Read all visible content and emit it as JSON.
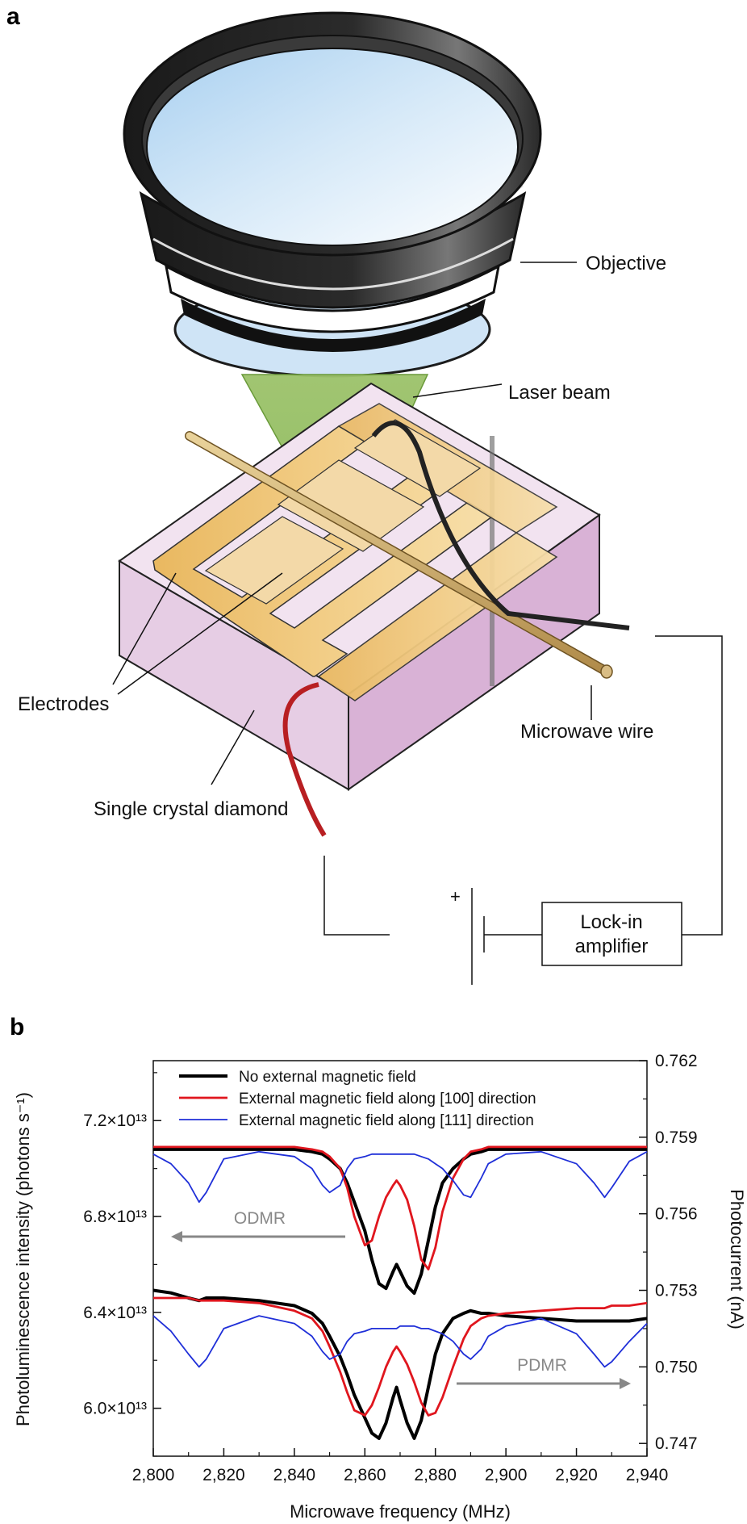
{
  "panel_a": {
    "letter": "a",
    "labels": {
      "objective": "Objective",
      "laser_beam": "Laser beam",
      "electrodes": "Electrodes",
      "microwave_wire": "Microwave wire",
      "diamond": "Single crystal diamond",
      "plus": "+",
      "lockin_line1": "Lock-in",
      "lockin_line2": "amplifier"
    }
  },
  "panel_b": {
    "letter": "b",
    "annotations": {
      "odmr": "ODMR",
      "pdmr": "PDMR"
    }
  },
  "chart_data": {
    "type": "line",
    "xlabel": "Microwave frequency (MHz)",
    "ylabel_left": "Photoluminescence intensity (photons s⁻¹)",
    "ylabel_right": "Photocurrent (nA)",
    "xlim": [
      2800,
      2940
    ],
    "x_ticks": [
      2800,
      2820,
      2840,
      2860,
      2880,
      2900,
      2920,
      2940
    ],
    "x_tick_labels": [
      "2,800",
      "2,820",
      "2,840",
      "2,860",
      "2,880",
      "2,900",
      "2,920",
      "2,940"
    ],
    "ylim_left": [
      58000000000000.0,
      74500000000000.0
    ],
    "y_ticks_left": [
      60000000000000.0,
      64000000000000.0,
      68000000000000.0,
      72000000000000.0
    ],
    "y_tick_labels_left": [
      "6.0×10¹³",
      "6.4×10¹³",
      "6.8×10¹³",
      "7.2×10¹³"
    ],
    "ylim_right": [
      0.7465,
      0.762
    ],
    "y_ticks_right": [
      0.747,
      0.75,
      0.753,
      0.756,
      0.759,
      0.762
    ],
    "y_tick_labels_right": [
      "0.747",
      "0.750",
      "0.753",
      "0.756",
      "0.759",
      "0.762"
    ],
    "legend_position": "top",
    "x": [
      2800,
      2805,
      2810,
      2813,
      2815,
      2820,
      2830,
      2840,
      2845,
      2848,
      2850,
      2853,
      2855,
      2857,
      2860,
      2862,
      2864,
      2866,
      2868,
      2869,
      2870,
      2872,
      2874,
      2876,
      2878,
      2880,
      2882,
      2885,
      2888,
      2890,
      2893,
      2895,
      2900,
      2910,
      2920,
      2925,
      2928,
      2930,
      2935,
      2940
    ],
    "series": [
      {
        "name": "No external magnetic field",
        "color": "#000000",
        "axis": "left",
        "group": "ODMR",
        "values": [
          70800000000000.0,
          70800000000000.0,
          70800000000000.0,
          70800000000000.0,
          70800000000000.0,
          70800000000000.0,
          70800000000000.0,
          70800000000000.0,
          70700000000000.0,
          70600000000000.0,
          70400000000000.0,
          70000000000000.0,
          69400000000000.0,
          68600000000000.0,
          67400000000000.0,
          66200000000000.0,
          65200000000000.0,
          65000000000000.0,
          65700000000000.0,
          66000000000000.0,
          65700000000000.0,
          65100000000000.0,
          64800000000000.0,
          65600000000000.0,
          67000000000000.0,
          68400000000000.0,
          69400000000000.0,
          70000000000000.0,
          70400000000000.0,
          70600000000000.0,
          70700000000000.0,
          70800000000000.0,
          70800000000000.0,
          70800000000000.0,
          70800000000000.0,
          70800000000000.0,
          70800000000000.0,
          70800000000000.0,
          70800000000000.0,
          70800000000000.0
        ]
      },
      {
        "name": "External magnetic field along [100] direction",
        "color": "#e0161e",
        "axis": "left",
        "group": "ODMR",
        "values": [
          70900000000000.0,
          70900000000000.0,
          70900000000000.0,
          70900000000000.0,
          70900000000000.0,
          70900000000000.0,
          70900000000000.0,
          70900000000000.0,
          70800000000000.0,
          70700000000000.0,
          70500000000000.0,
          70000000000000.0,
          69200000000000.0,
          68000000000000.0,
          66800000000000.0,
          67000000000000.0,
          68000000000000.0,
          68800000000000.0,
          69300000000000.0,
          69500000000000.0,
          69300000000000.0,
          68700000000000.0,
          67600000000000.0,
          66200000000000.0,
          65800000000000.0,
          66700000000000.0,
          68200000000000.0,
          69600000000000.0,
          70400000000000.0,
          70700000000000.0,
          70800000000000.0,
          70900000000000.0,
          70900000000000.0,
          70900000000000.0,
          70900000000000.0,
          70900000000000.0,
          70900000000000.0,
          70900000000000.0,
          70900000000000.0,
          70900000000000.0
        ]
      },
      {
        "name": "External magnetic field along [111] direction",
        "color": "#1f2fd8",
        "axis": "left",
        "group": "ODMR",
        "values": [
          70600000000000.0,
          70200000000000.0,
          69400000000000.0,
          68600000000000.0,
          69000000000000.0,
          70400000000000.0,
          70700000000000.0,
          70500000000000.0,
          70000000000000.0,
          69300000000000.0,
          69000000000000.0,
          69300000000000.0,
          70000000000000.0,
          70400000000000.0,
          70500000000000.0,
          70600000000000.0,
          70600000000000.0,
          70600000000000.0,
          70600000000000.0,
          70600000000000.0,
          70600000000000.0,
          70600000000000.0,
          70600000000000.0,
          70500000000000.0,
          70400000000000.0,
          70200000000000.0,
          70000000000000.0,
          69500000000000.0,
          68900000000000.0,
          68800000000000.0,
          69600000000000.0,
          70200000000000.0,
          70600000000000.0,
          70700000000000.0,
          70200000000000.0,
          69400000000000.0,
          68800000000000.0,
          69200000000000.0,
          70300000000000.0,
          70700000000000.0
        ]
      },
      {
        "name": "No external magnetic field",
        "color": "#000000",
        "axis": "right",
        "group": "PDMR",
        "values": [
          0.753,
          0.7529,
          0.7527,
          0.7526,
          0.7527,
          0.7527,
          0.7526,
          0.7524,
          0.7521,
          0.7517,
          0.7512,
          0.7504,
          0.7497,
          0.7489,
          0.748,
          0.7474,
          0.7472,
          0.7478,
          0.7488,
          0.7492,
          0.7487,
          0.7478,
          0.7472,
          0.7479,
          0.7492,
          0.7505,
          0.7513,
          0.7519,
          0.7521,
          0.7522,
          0.7521,
          0.7521,
          0.752,
          0.7519,
          0.7518,
          0.7518,
          0.7518,
          0.7518,
          0.7518,
          0.7519
        ]
      },
      {
        "name": "External magnetic field along [100] direction",
        "color": "#e0161e",
        "axis": "right",
        "group": "PDMR",
        "values": [
          0.7527,
          0.7527,
          0.7527,
          0.7526,
          0.7526,
          0.7526,
          0.7525,
          0.7522,
          0.7519,
          0.7514,
          0.7508,
          0.7498,
          0.749,
          0.7483,
          0.7481,
          0.7485,
          0.7492,
          0.75,
          0.7506,
          0.7508,
          0.7506,
          0.7501,
          0.7494,
          0.7486,
          0.7481,
          0.7482,
          0.7488,
          0.75,
          0.7511,
          0.7516,
          0.7519,
          0.752,
          0.7521,
          0.7522,
          0.7523,
          0.7523,
          0.7523,
          0.7524,
          0.7524,
          0.7525
        ]
      },
      {
        "name": "External magnetic field along [111] direction",
        "color": "#1f2fd8",
        "axis": "right",
        "group": "PDMR",
        "values": [
          0.752,
          0.7514,
          0.7505,
          0.75,
          0.7503,
          0.7515,
          0.752,
          0.7517,
          0.7512,
          0.7506,
          0.7503,
          0.7505,
          0.751,
          0.7513,
          0.7514,
          0.7515,
          0.7515,
          0.7515,
          0.7515,
          0.7515,
          0.7516,
          0.7516,
          0.7516,
          0.7515,
          0.7515,
          0.7514,
          0.7513,
          0.751,
          0.7505,
          0.7503,
          0.7507,
          0.7512,
          0.7516,
          0.7519,
          0.7513,
          0.7505,
          0.75,
          0.7502,
          0.751,
          0.7517
        ]
      }
    ]
  }
}
